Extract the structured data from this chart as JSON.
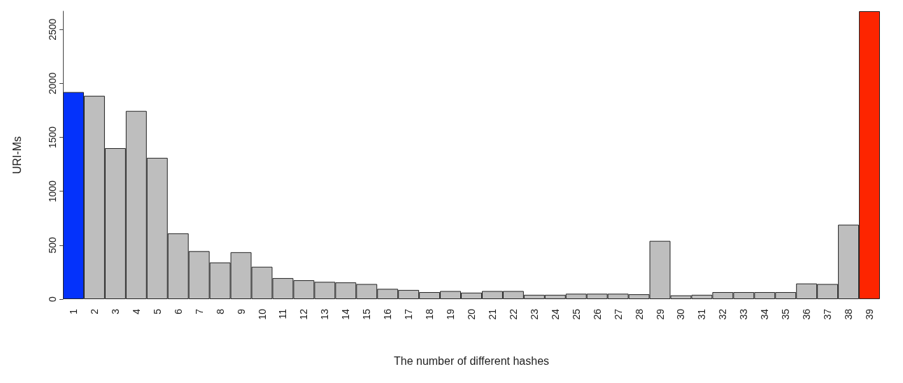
{
  "chart_data": {
    "type": "bar",
    "xlabel": "The number of different hashes",
    "ylabel": "URI-Ms",
    "categories": [
      "1",
      "2",
      "3",
      "4",
      "5",
      "6",
      "7",
      "8",
      "9",
      "10",
      "11",
      "12",
      "13",
      "14",
      "15",
      "16",
      "17",
      "18",
      "19",
      "20",
      "21",
      "22",
      "23",
      "24",
      "25",
      "26",
      "27",
      "28",
      "29",
      "30",
      "31",
      "32",
      "33",
      "34",
      "35",
      "36",
      "37",
      "38",
      "39"
    ],
    "values": [
      1920,
      1885,
      1400,
      1745,
      1310,
      610,
      445,
      340,
      435,
      300,
      195,
      175,
      160,
      155,
      140,
      95,
      85,
      65,
      75,
      60,
      75,
      75,
      40,
      40,
      50,
      50,
      50,
      45,
      540,
      35,
      40,
      65,
      65,
      65,
      65,
      145,
      140,
      690,
      2670
    ],
    "colors": [
      "#0432fb",
      "#bebebe",
      "#bebebe",
      "#bebebe",
      "#bebebe",
      "#bebebe",
      "#bebebe",
      "#bebebe",
      "#bebebe",
      "#bebebe",
      "#bebebe",
      "#bebebe",
      "#bebebe",
      "#bebebe",
      "#bebebe",
      "#bebebe",
      "#bebebe",
      "#bebebe",
      "#bebebe",
      "#bebebe",
      "#bebebe",
      "#bebebe",
      "#bebebe",
      "#bebebe",
      "#bebebe",
      "#bebebe",
      "#bebebe",
      "#bebebe",
      "#bebebe",
      "#bebebe",
      "#bebebe",
      "#bebebe",
      "#bebebe",
      "#bebebe",
      "#bebebe",
      "#bebebe",
      "#bebebe",
      "#bebebe",
      "#fd2500"
    ],
    "ylim": [
      0,
      2670
    ],
    "yticks": [
      0,
      500,
      1000,
      1500,
      2000,
      2500
    ],
    "grid": false
  }
}
